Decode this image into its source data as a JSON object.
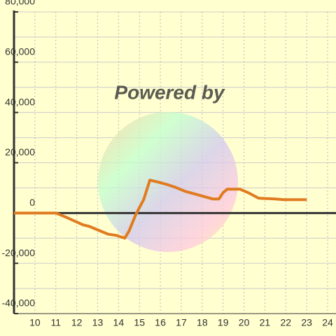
{
  "chart_data": {
    "type": "line",
    "watermark": "Powered by",
    "x": [
      9,
      11,
      11.5,
      12.3,
      12.6,
      13,
      13.5,
      13.9,
      14.3,
      14.5,
      14.8,
      15,
      15.2,
      15.5,
      15.9,
      16.3,
      16.7,
      17.2,
      17.9,
      18.5,
      18.8,
      19,
      19.2,
      19.8,
      20.2,
      20.7,
      21.5,
      21.9,
      23
    ],
    "series": [
      {
        "color": "#e07b20",
        "values": [
          0,
          0,
          -1700,
          -4700,
          -5300,
          -6700,
          -8400,
          -8900,
          -10000,
          -7200,
          -1100,
          2200,
          5300,
          13100,
          12300,
          11400,
          10300,
          8600,
          7000,
          5600,
          5600,
          8100,
          9500,
          9500,
          8100,
          5900,
          5600,
          5300,
          5300
        ]
      }
    ],
    "xlim": [
      9,
      24.4
    ],
    "xticks": [
      10,
      11,
      12,
      13,
      14,
      15,
      16,
      17,
      18,
      19,
      20,
      21,
      22,
      23,
      24
    ],
    "ylim": [
      -40000,
      80000
    ],
    "yticks": [
      {
        "value": -40000,
        "label": "-40,000"
      },
      {
        "value": -20000,
        "label": "-20,000"
      },
      0,
      {
        "value": 20000,
        "label": "20,000"
      },
      {
        "value": 40000,
        "label": "40,000"
      },
      {
        "value": 60000,
        "label": "60,000"
      },
      {
        "value": 80000,
        "label": "80,000"
      }
    ],
    "yminorticks": [
      -30000,
      -10000,
      10000,
      30000,
      50000,
      70000
    ],
    "grid": true
  }
}
